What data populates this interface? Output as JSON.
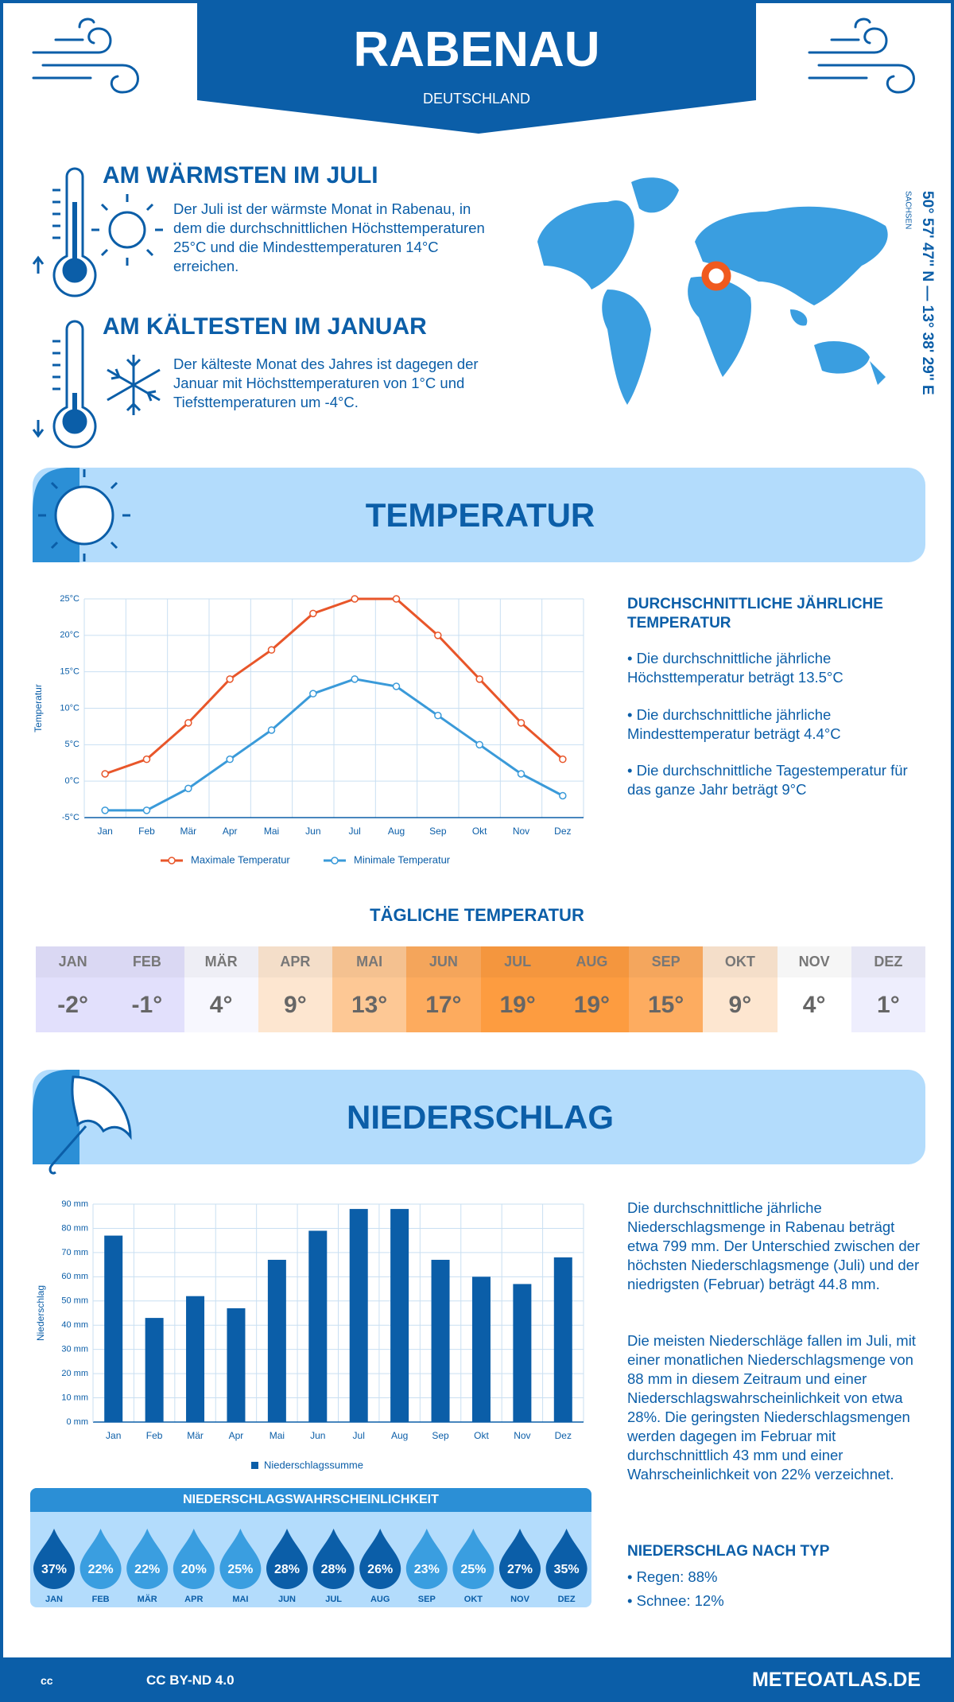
{
  "header": {
    "title": "RABENAU",
    "subtitle": "DEUTSCHLAND"
  },
  "warmest": {
    "title": "AM WÄRMSTEN IM JULI",
    "text": "Der Juli ist der wärmste Monat in Rabenau, in dem die durchschnittlichen Höchsttemperaturen 25°C und die Mindesttemperaturen 14°C erreichen."
  },
  "coldest": {
    "title": "AM KÄLTESTEN IM JANUAR",
    "text": "Der kälteste Monat des Jahres ist dagegen der Januar mit Höchsttemperaturen von 1°C und Tiefsttemperaturen um -4°C."
  },
  "location": {
    "coordinates": "50° 57' 47'' N — 13° 38' 29'' E",
    "region": "SACHSEN"
  },
  "temperature": {
    "heading": "TEMPERATUR",
    "summary_title": "DURCHSCHNITTLICHE JÄHRLICHE TEMPERATUR",
    "summary": [
      "• Die durchschnittliche jährliche Höchsttemperatur beträgt 13.5°C",
      "• Die durchschnittliche jährliche Mindesttemperatur beträgt 4.4°C",
      "• Die durchschnittliche Tagestemperatur für das ganze Jahr beträgt 9°C"
    ]
  },
  "daily_temperature": {
    "title": "TÄGLICHE TEMPERATUR",
    "months": [
      "JAN",
      "FEB",
      "MÄR",
      "APR",
      "MAI",
      "JUN",
      "JUL",
      "AUG",
      "SEP",
      "OKT",
      "NOV",
      "DEZ"
    ],
    "values": [
      "-2°",
      "-1°",
      "4°",
      "9°",
      "13°",
      "17°",
      "19°",
      "19°",
      "15°",
      "9°",
      "4°",
      "1°"
    ],
    "colors": [
      "#e2e0fc",
      "#e2e0fc",
      "#f7f7fe",
      "#fde6d0",
      "#fdc895",
      "#fdab5e",
      "#fd9c40",
      "#fd9c40",
      "#fdac60",
      "#fde6d0",
      "#ffffff",
      "#eeeefd"
    ]
  },
  "precipitation": {
    "heading": "NIEDERSCHLAG",
    "paragraphs": [
      "Die durchschnittliche jährliche Niederschlagsmenge in Rabenau beträgt etwa 799 mm. Der Unterschied zwischen der höchsten Niederschlagsmenge (Juli) und der niedrigsten (Februar) beträgt 44.8 mm.",
      "Die meisten Niederschläge fallen im Juli, mit einer monatlichen Niederschlagsmenge von 88 mm in diesem Zeitraum und einer Niederschlagswahrscheinlichkeit von etwa 28%. Die geringsten Niederschlagsmengen werden dagegen im Februar mit durchschnittlich 43 mm und einer Wahrscheinlichkeit von 22% verzeichnet."
    ],
    "type_title": "NIEDERSCHLAG NACH TYP",
    "types": [
      "• Regen: 88%",
      "• Schnee: 12%"
    ]
  },
  "probability": {
    "title": "NIEDERSCHLAGSWAHRSCHEINLICHKEIT",
    "months": [
      "JAN",
      "FEB",
      "MÄR",
      "APR",
      "MAI",
      "JUN",
      "JUL",
      "AUG",
      "SEP",
      "OKT",
      "NOV",
      "DEZ"
    ],
    "values": [
      "37%",
      "22%",
      "22%",
      "20%",
      "25%",
      "28%",
      "28%",
      "26%",
      "23%",
      "25%",
      "27%",
      "35%"
    ],
    "colors": [
      "#0b5ea8",
      "#3a9ee0",
      "#3a9ee0",
      "#3a9ee0",
      "#3a9ee0",
      "#0b5ea8",
      "#0b5ea8",
      "#0b5ea8",
      "#3a9ee0",
      "#3a9ee0",
      "#0b5ea8",
      "#0b5ea8"
    ]
  },
  "footer": {
    "license": "CC BY-ND 4.0",
    "site": "METEOATLAS.DE"
  },
  "chart_data": [
    {
      "type": "line",
      "ylabel": "Temperatur",
      "categories": [
        "Jan",
        "Feb",
        "Mär",
        "Apr",
        "Mai",
        "Jun",
        "Jul",
        "Aug",
        "Sep",
        "Okt",
        "Nov",
        "Dez"
      ],
      "series": [
        {
          "name": "Maximale Temperatur",
          "color": "#e8562a",
          "values": [
            1,
            3,
            8,
            14,
            18,
            23,
            25,
            25,
            20,
            14,
            8,
            3
          ]
        },
        {
          "name": "Minimale Temperatur",
          "color": "#3a9ad9",
          "values": [
            -4,
            -4,
            -1,
            3,
            7,
            12,
            14,
            13,
            9,
            5,
            1,
            -2
          ]
        }
      ],
      "ylim": [
        -5,
        25
      ],
      "yticks": [
        {
          "value": -5,
          "label": "-5°C"
        },
        {
          "value": 0,
          "label": "0°C"
        },
        {
          "value": 5,
          "label": "5°C"
        },
        {
          "value": 10,
          "label": "10°C"
        },
        {
          "value": 15,
          "label": "15°C"
        },
        {
          "value": 20,
          "label": "20°C"
        },
        {
          "value": 25,
          "label": "25°C"
        }
      ],
      "grid": true
    },
    {
      "type": "bar",
      "ylabel": "Niederschlag",
      "categories": [
        "Jan",
        "Feb",
        "Mär",
        "Apr",
        "Mai",
        "Jun",
        "Jul",
        "Aug",
        "Sep",
        "Okt",
        "Nov",
        "Dez"
      ],
      "series": [
        {
          "name": "Niederschlagssumme",
          "color": "#0b5ea8",
          "values": [
            77,
            43,
            52,
            47,
            67,
            79,
            88,
            88,
            67,
            60,
            57,
            68
          ]
        }
      ],
      "ylim": [
        0,
        90
      ],
      "yticks": [
        {
          "value": 0,
          "label": "0 mm"
        },
        {
          "value": 10,
          "label": "10 mm"
        },
        {
          "value": 20,
          "label": "20 mm"
        },
        {
          "value": 30,
          "label": "30 mm"
        },
        {
          "value": 40,
          "label": "40 mm"
        },
        {
          "value": 50,
          "label": "50 mm"
        },
        {
          "value": 60,
          "label": "60 mm"
        },
        {
          "value": 70,
          "label": "70 mm"
        },
        {
          "value": 80,
          "label": "80 mm"
        },
        {
          "value": 90,
          "label": "90 mm"
        }
      ],
      "grid": true
    }
  ]
}
